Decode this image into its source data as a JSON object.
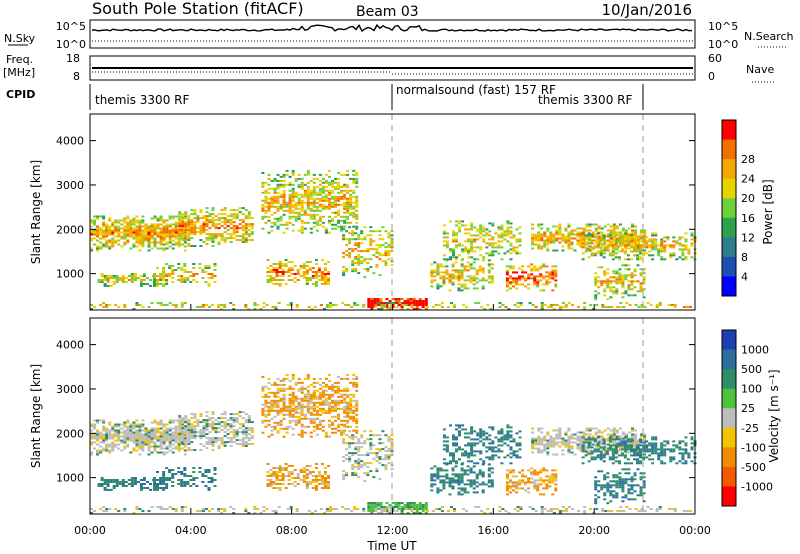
{
  "header": {
    "station": "South Pole Station (fitACF)",
    "beam": "Beam 03",
    "date": "10/Jan/2016"
  },
  "params": {
    "nsky_label": "N.Sky",
    "nsky_ticks": [
      "10^5",
      "10^0"
    ],
    "nsearch_label": "N.Search",
    "nsearch_ticks": [
      "10^5",
      "10^0"
    ],
    "freq_label": "Freq.",
    "freq_unit": "[MHz]",
    "freq_ticks": [
      "18",
      "8"
    ],
    "nave_label": "Nave",
    "nave_ticks": [
      "60",
      "0"
    ],
    "cpid_label": "CPID",
    "cpid_segments": [
      {
        "label": "themis 3300 RF",
        "start_h": 0,
        "end_h": 12
      },
      {
        "label": "normalsound (fast) 157 RF",
        "start_h": 12,
        "end_h": 22
      },
      {
        "label": "themis 3300 RF",
        "start_h": 22,
        "end_h": 24
      }
    ]
  },
  "chart_data": [
    {
      "type": "heatmap",
      "name": "power",
      "ylabel": "Slant Range [km]",
      "yticks": [
        1000,
        2000,
        3000,
        4000
      ],
      "ylim": [
        180,
        4600
      ],
      "xlim": [
        0,
        24
      ],
      "colorbar_label": "Power [dB]",
      "colorbar_ticks": [
        "4",
        "8",
        "12",
        "16",
        "20",
        "24",
        "28"
      ],
      "colors": [
        "#0000ff",
        "#1f4fb4",
        "#2e7d8e",
        "#2fa04c",
        "#6fd13a",
        "#e8d200",
        "#f2a800",
        "#f26f00",
        "#ff0000"
      ]
    },
    {
      "type": "heatmap",
      "name": "velocity",
      "ylabel": "Slant Range [km]",
      "yticks": [
        1000,
        2000,
        3000,
        4000
      ],
      "ylim": [
        180,
        4600
      ],
      "xlim": [
        0,
        24
      ],
      "xlabel": "Time UT",
      "xticks": [
        "00:00",
        "04:00",
        "08:00",
        "12:00",
        "16:00",
        "20:00",
        "00:00"
      ],
      "colorbar_label": "Velocity [m s⁻¹]",
      "colorbar_ticks": [
        "1000",
        "500",
        "100",
        "25",
        "-25",
        "-100",
        "-500",
        "-1000"
      ],
      "colors": [
        "#1d3fb0",
        "#2b6f9e",
        "#2e8c6a",
        "#4cc23a",
        "#bdbdbd",
        "#f2c400",
        "#f28b00",
        "#f25a00",
        "#ff0000"
      ]
    }
  ]
}
